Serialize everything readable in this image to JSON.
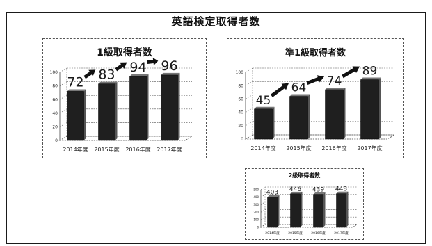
{
  "page": {
    "title": "英語検定取得者数"
  },
  "chart_data": [
    {
      "type": "bar",
      "title": "1級取得者数",
      "categories": [
        "2014年度",
        "2015年度",
        "2016年度",
        "2017年度"
      ],
      "values": [
        72,
        83,
        94,
        96
      ],
      "data_labels": [
        "72",
        "83",
        "94",
        "96"
      ],
      "yticks": [
        "0",
        "20",
        "40",
        "60",
        "80",
        "100"
      ],
      "ylim": [
        0,
        100
      ],
      "grid": true,
      "arrows": true,
      "bar_color": "#1f1f1f",
      "xlabel": "",
      "ylabel": ""
    },
    {
      "type": "bar",
      "title": "準1級取得者数",
      "categories": [
        "2014年度",
        "2015年度",
        "2016年度",
        "2017年度"
      ],
      "values": [
        45,
        64,
        74,
        89
      ],
      "data_labels": [
        "45",
        "64",
        "74",
        "89"
      ],
      "yticks": [
        "0",
        "20",
        "40",
        "60",
        "80",
        "100"
      ],
      "ylim": [
        0,
        100
      ],
      "grid": true,
      "arrows": true,
      "bar_color": "#1f1f1f",
      "xlabel": "",
      "ylabel": ""
    },
    {
      "type": "bar",
      "title": "2級取得者数",
      "categories": [
        "2014年度",
        "2015年度",
        "2016年度",
        "2017年度"
      ],
      "values": [
        403,
        446,
        439,
        448
      ],
      "data_labels": [
        "403",
        "446",
        "439",
        "448"
      ],
      "yticks": [
        "0",
        "100",
        "200",
        "300",
        "400",
        "500"
      ],
      "ylim": [
        0,
        500
      ],
      "grid": true,
      "arrows": false,
      "bar_color": "#1f1f1f",
      "xlabel": "",
      "ylabel": ""
    }
  ]
}
